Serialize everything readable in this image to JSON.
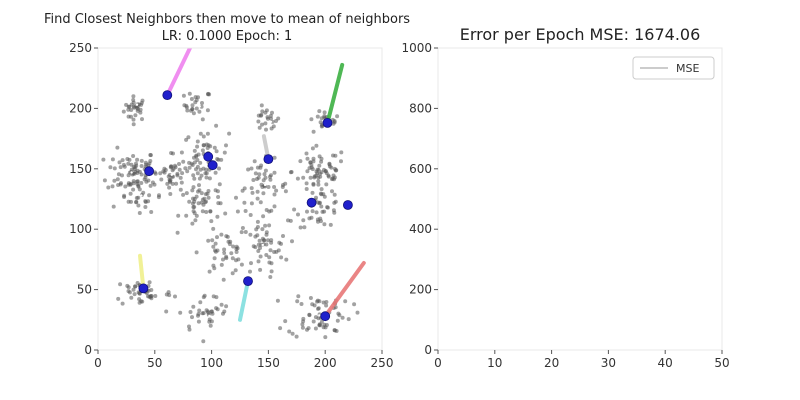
{
  "chart_data": [
    {
      "type": "scatter",
      "title": "Find Closest Neighbors then move to mean of neighbors",
      "subtitle": "LR: 0.1000 Epoch:  1",
      "xlim": [
        0,
        250
      ],
      "ylim": [
        0,
        250
      ],
      "x_ticks": [
        "0",
        "50",
        "100",
        "150",
        "200",
        "250"
      ],
      "y_ticks": [
        "0",
        "50",
        "100",
        "150",
        "200",
        "250"
      ],
      "grid": false,
      "point_color": "#555555",
      "center_color": "#2020cc",
      "clusters": [
        {
          "cx": 33,
          "cy": 200,
          "sx": 5,
          "sy": 5,
          "n": 30
        },
        {
          "cx": 88,
          "cy": 203,
          "sx": 6,
          "sy": 6,
          "n": 25
        },
        {
          "cx": 148,
          "cy": 190,
          "sx": 6,
          "sy": 5,
          "n": 22
        },
        {
          "cx": 200,
          "cy": 190,
          "sx": 7,
          "sy": 4,
          "n": 18
        },
        {
          "cx": 30,
          "cy": 148,
          "sx": 11,
          "sy": 9,
          "n": 70
        },
        {
          "cx": 65,
          "cy": 145,
          "sx": 11,
          "sy": 8,
          "n": 55
        },
        {
          "cx": 95,
          "cy": 160,
          "sx": 10,
          "sy": 11,
          "n": 55
        },
        {
          "cx": 145,
          "cy": 135,
          "sx": 11,
          "sy": 11,
          "n": 55
        },
        {
          "cx": 195,
          "cy": 148,
          "sx": 12,
          "sy": 10,
          "n": 65
        },
        {
          "cx": 35,
          "cy": 125,
          "sx": 8,
          "sy": 7,
          "n": 25
        },
        {
          "cx": 95,
          "cy": 120,
          "sx": 11,
          "sy": 9,
          "n": 45
        },
        {
          "cx": 195,
          "cy": 118,
          "sx": 10,
          "sy": 8,
          "n": 40
        },
        {
          "cx": 110,
          "cy": 80,
          "sx": 10,
          "sy": 9,
          "n": 40
        },
        {
          "cx": 145,
          "cy": 85,
          "sx": 11,
          "sy": 11,
          "n": 50
        },
        {
          "cx": 40,
          "cy": 48,
          "sx": 13,
          "sy": 6,
          "n": 45
        },
        {
          "cx": 95,
          "cy": 30,
          "sx": 12,
          "sy": 8,
          "n": 35
        },
        {
          "cx": 195,
          "cy": 30,
          "sx": 14,
          "sy": 10,
          "n": 60
        }
      ],
      "centers": [
        {
          "x": 61,
          "y": 211,
          "trail": [
            [
              83,
              254
            ]
          ],
          "trail_color": "#ee82ee"
        },
        {
          "x": 202,
          "y": 188,
          "trail": [
            [
              215,
              236
            ]
          ],
          "trail_color": "#3cb043"
        },
        {
          "x": 150,
          "y": 158,
          "trail": [
            [
              146,
              177
            ]
          ],
          "trail_color": "#c8c8c8"
        },
        {
          "x": 45,
          "y": 148,
          "trail": [],
          "trail_color": "#555555"
        },
        {
          "x": 101,
          "y": 153,
          "trail": [],
          "trail_color": "#555555"
        },
        {
          "x": 97,
          "y": 160,
          "trail": [],
          "trail_color": "#555555"
        },
        {
          "x": 188,
          "y": 122,
          "trail": [],
          "trail_color": "#555555"
        },
        {
          "x": 220,
          "y": 120,
          "trail": [],
          "trail_color": "#555555"
        },
        {
          "x": 40,
          "y": 51,
          "trail": [
            [
              37,
              78
            ]
          ],
          "trail_color": "#f0f08c"
        },
        {
          "x": 132,
          "y": 57,
          "trail": [
            [
              125,
              25
            ]
          ],
          "trail_color": "#7fdede"
        },
        {
          "x": 200,
          "y": 28,
          "trail": [
            [
              234,
              72
            ]
          ],
          "trail_color": "#e87878"
        }
      ]
    },
    {
      "type": "line",
      "title": "Error per Epoch  MSE: 1674.06",
      "xlim": [
        0,
        50
      ],
      "ylim": [
        0,
        1000
      ],
      "x_ticks": [
        "0",
        "10",
        "20",
        "30",
        "40",
        "50"
      ],
      "y_ticks": [
        "0",
        "200",
        "400",
        "600",
        "800",
        "1000"
      ],
      "legend": "top-right",
      "series": [
        {
          "name": "MSE",
          "x": [],
          "y": [],
          "color": "#bbbbbb"
        }
      ]
    }
  ]
}
